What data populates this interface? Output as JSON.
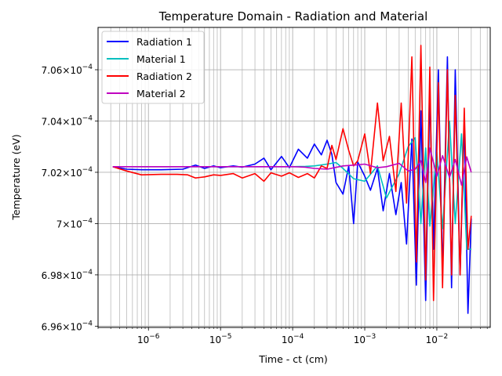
{
  "chart_data": {
    "type": "line",
    "title": "Temperature Domain - Radiation and Material",
    "xlabel": "Time - ct (cm)",
    "ylabel": "Temperature (eV)",
    "xscale": "log",
    "xlim": [
      2e-07,
      0.055
    ],
    "ylim": [
      0.00069595,
      0.00070765
    ],
    "grid": true,
    "legend_position": "top-left",
    "x_ticks": [
      {
        "value": 1e-06,
        "base": "10",
        "exp": "−6"
      },
      {
        "value": 1e-05,
        "base": "10",
        "exp": "−5"
      },
      {
        "value": 0.0001,
        "base": "10",
        "exp": "−4"
      },
      {
        "value": 0.001,
        "base": "10",
        "exp": "−3"
      },
      {
        "value": 0.01,
        "base": "10",
        "exp": "−2"
      }
    ],
    "y_ticks": [
      {
        "value": 0.000696,
        "mant": "6.96",
        "exp": "−4"
      },
      {
        "value": 0.000698,
        "mant": "6.98",
        "exp": "−4"
      },
      {
        "value": 0.0007,
        "mant": "7",
        "exp": "−4"
      },
      {
        "value": 0.000702,
        "mant": "7.02",
        "exp": "−4"
      },
      {
        "value": 0.000704,
        "mant": "7.04",
        "exp": "−4"
      },
      {
        "value": 0.000706,
        "mant": "7.06",
        "exp": "−4"
      }
    ],
    "times_sign": "×",
    "series": [
      {
        "name": "Radiation 1",
        "color": "#0000ff",
        "x": [
          3.2e-07,
          5e-07,
          8e-07,
          1.5e-06,
          3e-06,
          4.5e-06,
          6e-06,
          8e-06,
          1e-05,
          1.5e-05,
          2e-05,
          3e-05,
          4e-05,
          5e-05,
          7e-05,
          9e-05,
          0.00012,
          0.00016,
          0.0002,
          0.00025,
          0.0003,
          0.00035,
          0.0004,
          0.0005,
          0.0006,
          0.0007,
          0.0008,
          0.001,
          0.0012,
          0.0015,
          0.0018,
          0.0022,
          0.0027,
          0.0032,
          0.0038,
          0.0045,
          0.0052,
          0.006,
          0.007,
          0.008,
          0.009,
          0.0105,
          0.012,
          0.014,
          0.016,
          0.018,
          0.021,
          0.024,
          0.027,
          0.03
        ],
        "y": [
          0.00070222,
          0.00070212,
          0.0007021,
          0.0007021,
          0.00070212,
          0.00070228,
          0.00070215,
          0.00070225,
          0.00070218,
          0.00070225,
          0.0007022,
          0.00070232,
          0.00070255,
          0.0007021,
          0.00070262,
          0.00070218,
          0.0007029,
          0.00070255,
          0.0007031,
          0.00070268,
          0.00070325,
          0.0007027,
          0.0007016,
          0.00070115,
          0.00070225,
          0.0007,
          0.0007024,
          0.00070185,
          0.0007013,
          0.00070215,
          0.0007005,
          0.00070195,
          0.00070035,
          0.0007016,
          0.0006992,
          0.0007033,
          0.0006976,
          0.0007044,
          0.000697,
          0.0007052,
          0.000699,
          0.000706,
          0.000698,
          0.0007065,
          0.0006975,
          0.000706,
          0.000698,
          0.000704,
          0.0006965,
          0.0007002
        ]
      },
      {
        "name": "Material 1",
        "color": "#00bfbf",
        "x": [
          3.2e-07,
          1e-06,
          1e-05,
          5e-05,
          0.0001,
          0.00015,
          0.0002,
          0.0003,
          0.0004,
          0.0005,
          0.0007,
          0.001,
          0.0015,
          0.002,
          0.003,
          0.004,
          0.005,
          0.006,
          0.007,
          0.008,
          0.01,
          0.012,
          0.015,
          0.018,
          0.022,
          0.026,
          0.03
        ],
        "y": [
          0.00070222,
          0.00070222,
          0.00070222,
          0.00070222,
          0.00070222,
          0.00070223,
          0.00070225,
          0.00070232,
          0.00070238,
          0.00070215,
          0.00070175,
          0.00070165,
          0.00070225,
          0.000701,
          0.00070195,
          0.000703,
          0.00070335,
          0.0007,
          0.00070295,
          0.0006999,
          0.0007028,
          0.0006998,
          0.000704,
          0.0007,
          0.0007035,
          0.000699,
          0.000699
        ]
      },
      {
        "name": "Radiation 2",
        "color": "#ff0000",
        "x": [
          3.2e-07,
          5e-07,
          8e-07,
          1.5e-06,
          2.5e-06,
          3.5e-06,
          4.5e-06,
          6e-06,
          8e-06,
          1e-05,
          1.5e-05,
          2e-05,
          3e-05,
          4e-05,
          5e-05,
          7e-05,
          9e-05,
          0.00012,
          0.00016,
          0.0002,
          0.00025,
          0.0003,
          0.00035,
          0.0004,
          0.0005,
          0.0006,
          0.0007,
          0.0008,
          0.001,
          0.0012,
          0.0015,
          0.0018,
          0.0022,
          0.0027,
          0.0032,
          0.0038,
          0.0045,
          0.0052,
          0.006,
          0.007,
          0.008,
          0.009,
          0.0105,
          0.012,
          0.014,
          0.016,
          0.018,
          0.021,
          0.024,
          0.027,
          0.03
        ],
        "y": [
          0.00070222,
          0.00070205,
          0.0007019,
          0.00070192,
          0.00070192,
          0.0007019,
          0.00070178,
          0.00070182,
          0.0007019,
          0.00070188,
          0.00070195,
          0.00070178,
          0.00070195,
          0.00070165,
          0.00070198,
          0.00070185,
          0.00070198,
          0.0007018,
          0.00070195,
          0.00070178,
          0.00070225,
          0.00070215,
          0.00070305,
          0.0007025,
          0.0007037,
          0.00070285,
          0.00070225,
          0.00070245,
          0.0007035,
          0.00070195,
          0.0007047,
          0.00070245,
          0.0007034,
          0.00070125,
          0.0007047,
          0.0007008,
          0.0007065,
          0.0006985,
          0.00070695,
          0.0006978,
          0.0007061,
          0.000697,
          0.0007055,
          0.0006975,
          0.000706,
          0.000698,
          0.000705,
          0.000698,
          0.0007045,
          0.000699,
          0.0007003
        ]
      },
      {
        "name": "Material 2",
        "color": "#bf00bf",
        "x": [
          3.2e-07,
          1e-06,
          1e-05,
          5e-05,
          0.0001,
          0.00015,
          0.0002,
          0.0003,
          0.0005,
          0.0007,
          0.001,
          0.0015,
          0.002,
          0.003,
          0.004,
          0.005,
          0.006,
          0.007,
          0.008,
          0.01,
          0.012,
          0.015,
          0.018,
          0.022,
          0.026,
          0.03
        ],
        "y": [
          0.00070222,
          0.00070222,
          0.00070222,
          0.00070222,
          0.00070222,
          0.0007022,
          0.00070215,
          0.00070212,
          0.00070225,
          0.00070228,
          0.00070232,
          0.00070218,
          0.00070222,
          0.00070235,
          0.00070205,
          0.00070212,
          0.00070245,
          0.0007016,
          0.00070295,
          0.00070185,
          0.00070265,
          0.0007018,
          0.0007025,
          0.0007015,
          0.0007026,
          0.000702
        ]
      }
    ]
  }
}
